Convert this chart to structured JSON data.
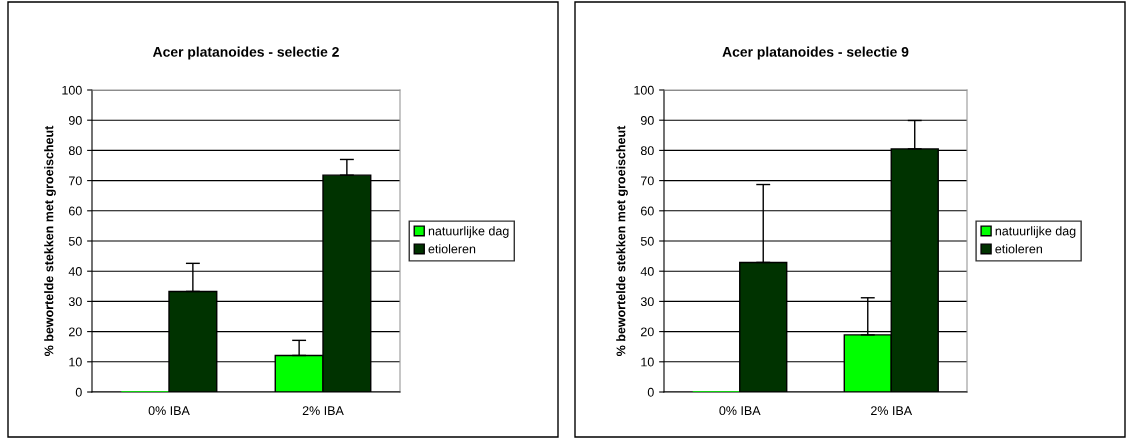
{
  "chart_data": [
    {
      "type": "bar",
      "title": "Acer platanoides - selectie 2",
      "ylabel": "% bewortelde stekken met groeischeut",
      "categories": [
        "0% IBA",
        "2% IBA"
      ],
      "series": [
        {
          "name": "natuurlijke dag",
          "color": "#00ff00",
          "values": [
            0,
            12.1
          ],
          "errors": [
            null,
            [
              12.1,
              17.1
            ]
          ]
        },
        {
          "name": "etioleren",
          "color": "#003300",
          "values": [
            33.3,
            71.8
          ],
          "errors": [
            [
              33.3,
              42.6
            ],
            [
              71.8,
              77.0
            ]
          ]
        }
      ],
      "ylim": [
        0,
        100
      ],
      "yticks": [
        0,
        10,
        20,
        30,
        40,
        50,
        60,
        70,
        80,
        90,
        100
      ],
      "grid": "y",
      "legend": "right"
    },
    {
      "type": "bar",
      "title": "Acer platanoides - selectie 9",
      "ylabel": "% bewortelde stekken met groeischeut",
      "categories": [
        "0% IBA",
        "2% IBA"
      ],
      "series": [
        {
          "name": "natuurlijke dag",
          "color": "#00ff00",
          "values": [
            0,
            18.9
          ],
          "errors": [
            null,
            [
              18.9,
              31.2
            ]
          ]
        },
        {
          "name": "etioleren",
          "color": "#003300",
          "values": [
            42.9,
            80.5
          ],
          "errors": [
            [
              42.9,
              68.7
            ],
            [
              80.5,
              89.9
            ]
          ]
        }
      ],
      "ylim": [
        0,
        100
      ],
      "yticks": [
        0,
        10,
        20,
        30,
        40,
        50,
        60,
        70,
        80,
        90,
        100
      ],
      "grid": "y",
      "legend": "right"
    }
  ]
}
